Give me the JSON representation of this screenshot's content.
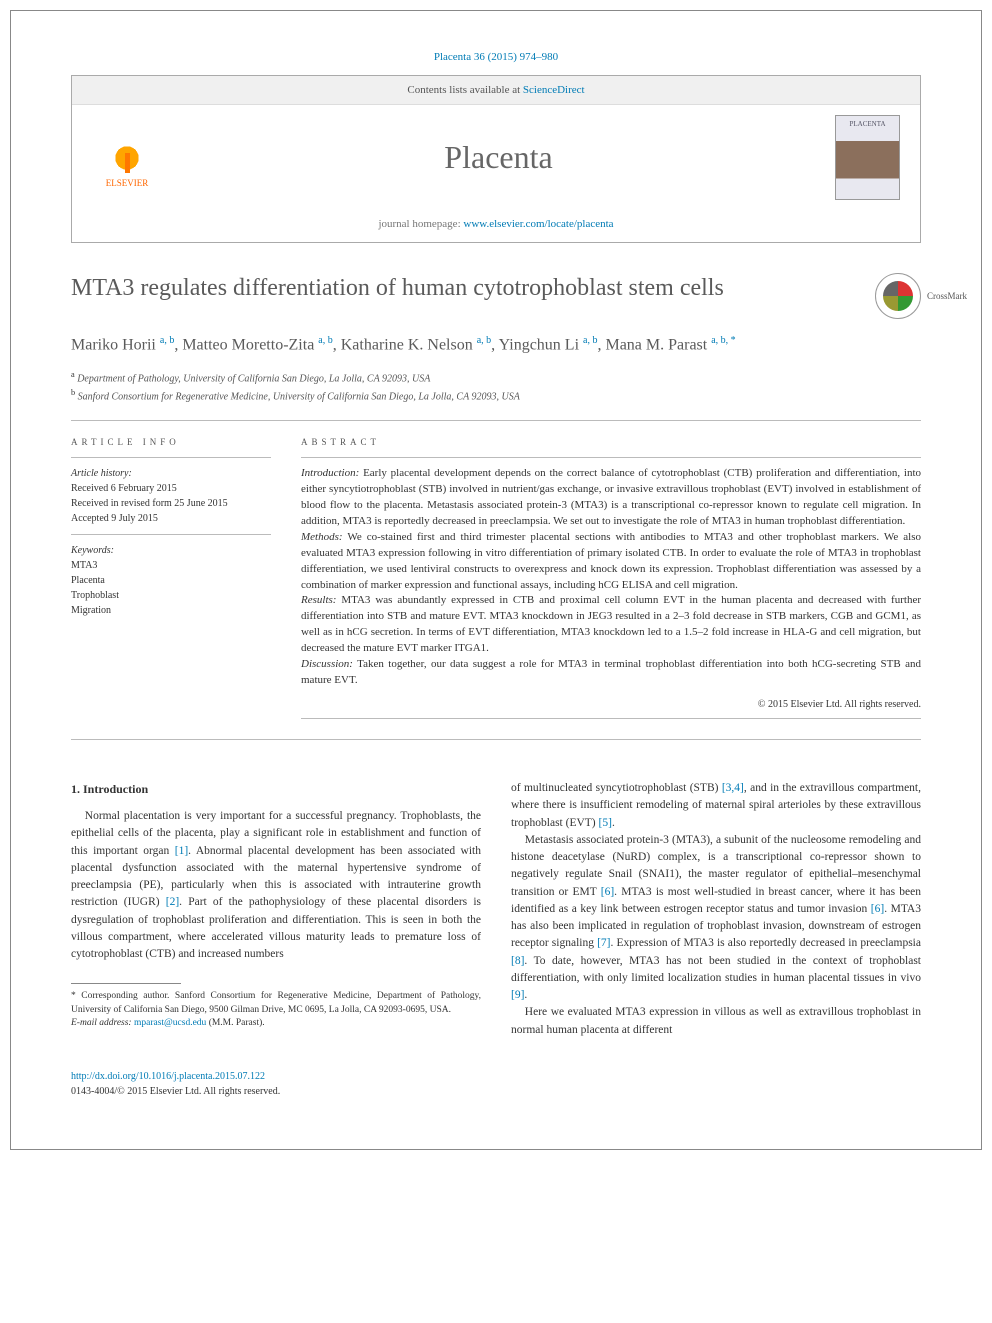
{
  "header": {
    "citation": "Placenta 36 (2015) 974–980",
    "contents_line_prefix": "Contents lists available at ",
    "contents_link": "ScienceDirect",
    "journal_name": "Placenta",
    "homepage_prefix": "journal homepage: ",
    "homepage_url": "www.elsevier.com/locate/placenta",
    "publisher": "ELSEVIER",
    "cover_label": "PLACENTA"
  },
  "crossmark_label": "CrossMark",
  "title": "MTA3 regulates differentiation of human cytotrophoblast stem cells",
  "authors_html": "Mariko Horii <sup>a, b</sup>, Matteo Moretto-Zita <sup>a, b</sup>, Katharine K. Nelson <sup>a, b</sup>, Yingchun Li <sup>a, b</sup>, Mana M. Parast <sup>a, b, *</sup>",
  "affiliations": {
    "a": "Department of Pathology, University of California San Diego, La Jolla, CA 92093, USA",
    "b": "Sanford Consortium for Regenerative Medicine, University of California San Diego, La Jolla, CA 92093, USA"
  },
  "article_info": {
    "label": "ARTICLE INFO",
    "history_label": "Article history:",
    "received": "Received 6 February 2015",
    "revised": "Received in revised form 25 June 2015",
    "accepted": "Accepted 9 July 2015",
    "keywords_label": "Keywords:",
    "keywords": [
      "MTA3",
      "Placenta",
      "Trophoblast",
      "Migration"
    ]
  },
  "abstract": {
    "label": "ABSTRACT",
    "intro_label": "Introduction:",
    "intro": "Early placental development depends on the correct balance of cytotrophoblast (CTB) proliferation and differentiation, into either syncytiotrophoblast (STB) involved in nutrient/gas exchange, or invasive extravillous trophoblast (EVT) involved in establishment of blood flow to the placenta. Metastasis associated protein-3 (MTA3) is a transcriptional co-repressor known to regulate cell migration. In addition, MTA3 is reportedly decreased in preeclampsia. We set out to investigate the role of MTA3 in human trophoblast differentiation.",
    "methods_label": "Methods:",
    "methods": "We co-stained first and third trimester placental sections with antibodies to MTA3 and other trophoblast markers. We also evaluated MTA3 expression following in vitro differentiation of primary isolated CTB. In order to evaluate the role of MTA3 in trophoblast differentiation, we used lentiviral constructs to overexpress and knock down its expression. Trophoblast differentiation was assessed by a combination of marker expression and functional assays, including hCG ELISA and cell migration.",
    "results_label": "Results:",
    "results": "MTA3 was abundantly expressed in CTB and proximal cell column EVT in the human placenta and decreased with further differentiation into STB and mature EVT. MTA3 knockdown in JEG3 resulted in a 2–3 fold decrease in STB markers, CGB and GCM1, as well as in hCG secretion. In terms of EVT differentiation, MTA3 knockdown led to a 1.5–2 fold increase in HLA-G and cell migration, but decreased the mature EVT marker ITGA1.",
    "discussion_label": "Discussion:",
    "discussion": "Taken together, our data suggest a role for MTA3 in terminal trophoblast differentiation into both hCG-secreting STB and mature EVT.",
    "copyright": "© 2015 Elsevier Ltd. All rights reserved."
  },
  "body": {
    "section_heading": "1. Introduction",
    "left_col_html": "Normal placentation is very important for a successful pregnancy. Trophoblasts, the epithelial cells of the placenta, play a significant role in establishment and function of this important organ <a class='ref' href='#'>[1]</a>. Abnormal placental development has been associated with placental dysfunction associated with the maternal hypertensive syndrome of preeclampsia (PE), particularly when this is associated with intrauterine growth restriction (IUGR) <a class='ref' href='#'>[2]</a>. Part of the pathophysiology of these placental disorders is dysregulation of trophoblast proliferation and differentiation. This is seen in both the villous compartment, where accelerated villous maturity leads to premature loss of cytotrophoblast (CTB) and increased numbers",
    "right_col_p1_html": "of multinucleated syncytiotrophoblast (STB) <a class='ref' href='#'>[3,4]</a>, and in the extravillous compartment, where there is insufficient remodeling of maternal spiral arterioles by these extravillous trophoblast (EVT) <a class='ref' href='#'>[5]</a>.",
    "right_col_p2_html": "Metastasis associated protein-3 (MTA3), a subunit of the nucleosome remodeling and histone deacetylase (NuRD) complex, is a transcriptional co-repressor shown to negatively regulate Snail (SNAI1), the master regulator of epithelial–mesenchymal transition or EMT <a class='ref' href='#'>[6]</a>. MTA3 is most well-studied in breast cancer, where it has been identified as a key link between estrogen receptor status and tumor invasion <a class='ref' href='#'>[6]</a>. MTA3 has also been implicated in regulation of trophoblast invasion, downstream of estrogen receptor signaling <a class='ref' href='#'>[7]</a>. Expression of MTA3 is also reportedly decreased in preeclampsia <a class='ref' href='#'>[8]</a>. To date, however, MTA3 has not been studied in the context of trophoblast differentiation, with only limited localization studies in human placental tissues in vivo <a class='ref' href='#'>[9]</a>.",
    "right_col_p3_html": "Here we evaluated MTA3 expression in villous as well as extravillous trophoblast in normal human placenta at different"
  },
  "footnote": {
    "corresponding": "* Corresponding author. Sanford Consortium for Regenerative Medicine, Department of Pathology, University of California San Diego, 9500 Gilman Drive, MC 0695, La Jolla, CA 92093-0695, USA.",
    "email_label": "E-mail address:",
    "email": "mparast@ucsd.edu",
    "email_suffix": "(M.M. Parast)."
  },
  "footer": {
    "doi": "http://dx.doi.org/10.1016/j.placenta.2015.07.122",
    "issn_line": "0143-4004/© 2015 Elsevier Ltd. All rights reserved."
  }
}
